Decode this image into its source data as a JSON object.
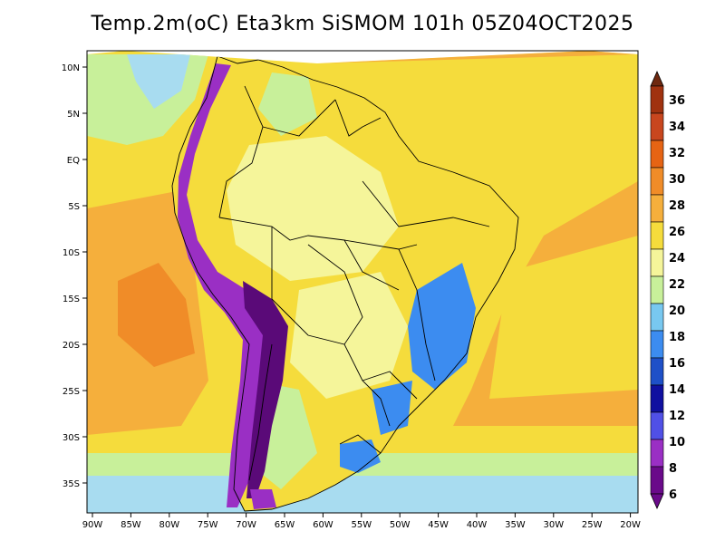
{
  "title": "Temp.2m(oC) Eta3km SiSMOM 101h 05Z04OCT2025",
  "axes": {
    "lat_labels": [
      "10N",
      "5N",
      "EQ",
      "5S",
      "10S",
      "15S",
      "20S",
      "25S",
      "30S",
      "35S"
    ],
    "lon_labels": [
      "90W",
      "85W",
      "80W",
      "75W",
      "70W",
      "65W",
      "60W",
      "55W",
      "50W",
      "45W",
      "40W",
      "35W",
      "30W",
      "25W",
      "20W"
    ]
  },
  "colorbar": {
    "labels": [
      "36",
      "34",
      "32",
      "30",
      "28",
      "26",
      "24",
      "22",
      "20",
      "18",
      "16",
      "14",
      "12",
      "10",
      "8",
      "6"
    ],
    "colors_low_to_high": [
      "#6a0a8a",
      "#9a2fc4",
      "#5050e6",
      "#1010a0",
      "#1e50c8",
      "#3c8cf0",
      "#78c8f0",
      "#c8f09a",
      "#f5f59a",
      "#f5dc3c",
      "#f5af3c",
      "#f08c28",
      "#e66414",
      "#c8461e",
      "#a0320f",
      "#6e280f"
    ]
  },
  "map": {
    "colors": {
      "ocean_cool": "#a8dcf0",
      "ocean_mild": "#c8f09a",
      "ocean_warm": "#f5dc3c",
      "ocean_hot": "#f5af3c",
      "ocean_hottest": "#f08c28",
      "land_base": "#f5dc3c",
      "land_mild": "#f5f59a",
      "land_green": "#c8f09a",
      "highland_cold": "#3c8cf0",
      "andes_cold": "#9a2fc4",
      "andes_coldest": "#5a0a78",
      "border": "#000000"
    }
  }
}
